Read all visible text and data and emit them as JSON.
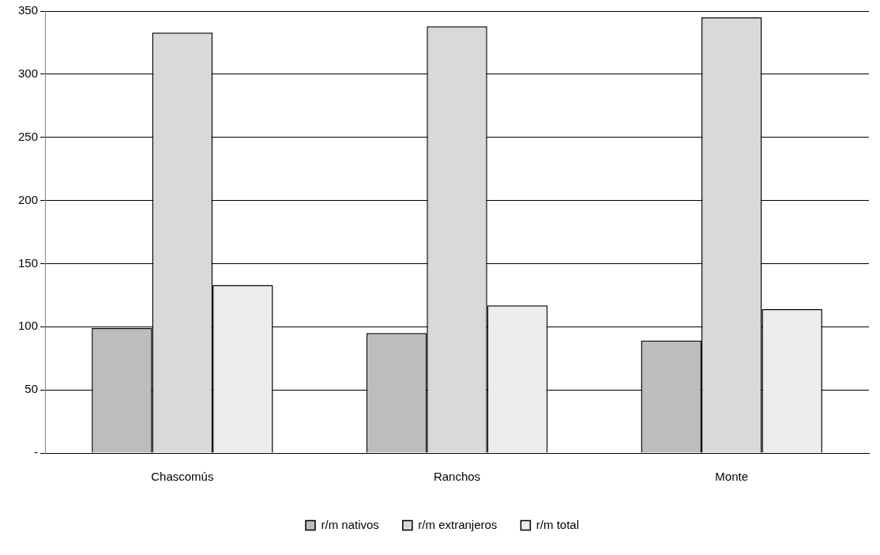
{
  "chart_data": {
    "type": "bar",
    "categories": [
      "Chascomús",
      "Ranchos",
      "Monte"
    ],
    "series": [
      {
        "name": "r/m nativos",
        "color": "#bdbdbd",
        "values": [
          99,
          95,
          89
        ]
      },
      {
        "name": "r/m extranjeros",
        "color": "#d9d9d9",
        "values": [
          333,
          338,
          345
        ]
      },
      {
        "name": "r/m total",
        "color": "#ececec",
        "values": [
          133,
          117,
          114
        ]
      }
    ],
    "ylim": [
      0,
      350
    ],
    "yticks": [
      {
        "value": 0,
        "label": "-"
      },
      50,
      100,
      150,
      200,
      250,
      300,
      350
    ],
    "grid": "y",
    "legend": "bottom"
  }
}
